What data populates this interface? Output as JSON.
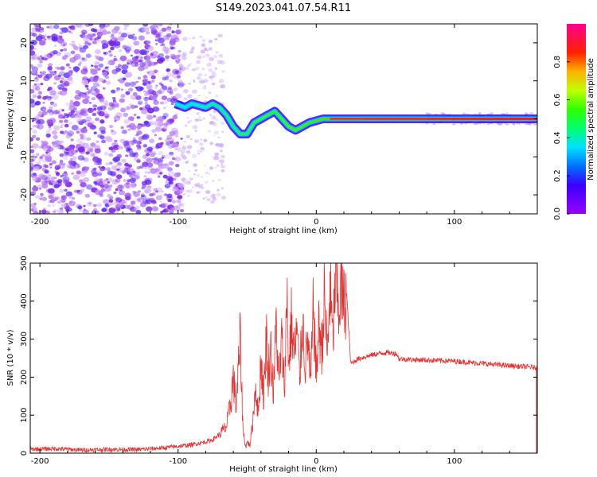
{
  "title": "S149.2023.041.07.54.R11",
  "colors": {
    "snr_line": "#e8302f",
    "axis": "#000000",
    "spectrogram_scatter": "#7a1fe0",
    "ridge_line": "#ff2020"
  },
  "colormap": "rainbow (violet-blue-cyan-green-yellow-red-magenta)",
  "chart_data": [
    {
      "type": "heatmap",
      "xlabel": "Height of straight line (km)",
      "ylabel": "Frequency (Hz)",
      "xlim": [
        -207,
        160
      ],
      "ylim": [
        -25,
        25
      ],
      "xticks": [
        -200,
        -100,
        0,
        100
      ],
      "yticks": [
        -20,
        -10,
        0,
        10,
        20
      ],
      "ridge": {
        "x": [
          -102,
          -95,
          -90,
          -85,
          -80,
          -75,
          -70,
          -65,
          -60,
          -55,
          -50,
          -45,
          -40,
          -35,
          -30,
          -25,
          -20,
          -15,
          -10,
          -5,
          0,
          5,
          10,
          20,
          40,
          60,
          80,
          100,
          120,
          140,
          160
        ],
        "y": [
          4,
          3,
          4,
          3.5,
          3,
          4,
          3,
          1,
          -2,
          -4,
          -4,
          -1,
          0,
          1,
          2,
          0,
          -2,
          -3,
          -2,
          -1,
          -0.5,
          0,
          0,
          0,
          0,
          0,
          0,
          0,
          0,
          0,
          0
        ]
      },
      "colorbar": {
        "label": "Normalized spectral amplitude",
        "ticks": [
          "0.0",
          "0.2",
          "0.4",
          "0.6",
          "0.8"
        ],
        "range": [
          0,
          1
        ]
      }
    },
    {
      "type": "line",
      "xlabel": "Height of straight line (km)",
      "ylabel": "SNR (10 * v/v)",
      "xlim": [
        -207,
        160
      ],
      "ylim": [
        0,
        500
      ],
      "xticks": [
        -200,
        -100,
        0,
        100
      ],
      "yticks": [
        0,
        100,
        200,
        300,
        400,
        500
      ],
      "series": [
        {
          "x": [
            -207,
            -190,
            -170,
            -150,
            -130,
            -110,
            -100,
            -90,
            -80,
            -75,
            -70,
            -65,
            -62,
            -60,
            -58,
            -55,
            -53,
            -51,
            -50,
            -48,
            -46,
            -44,
            -42,
            -40,
            -38,
            -36,
            -35,
            -33,
            -31,
            -29,
            -27,
            -25,
            -23,
            -21,
            -20,
            -18,
            -16,
            -14,
            -12,
            -10,
            -8,
            -6,
            -4,
            -2,
            0,
            2,
            4,
            6,
            8,
            10,
            12,
            14,
            16,
            18,
            20,
            22,
            25,
            30,
            40,
            50,
            58,
            60,
            70,
            80,
            100,
            120,
            140,
            160
          ],
          "values": [
            10,
            12,
            8,
            10,
            9,
            14,
            18,
            22,
            30,
            35,
            50,
            70,
            130,
            200,
            120,
            300,
            60,
            15,
            30,
            20,
            80,
            180,
            100,
            250,
            150,
            320,
            200,
            280,
            160,
            340,
            180,
            300,
            170,
            430,
            220,
            350,
            250,
            330,
            190,
            360,
            230,
            300,
            180,
            390,
            200,
            340,
            270,
            420,
            250,
            440,
            290,
            480,
            370,
            430,
            390,
            420,
            235,
            248,
            258,
            265,
            262,
            248,
            246,
            245,
            242,
            236,
            230,
            225
          ]
        }
      ]
    }
  ]
}
